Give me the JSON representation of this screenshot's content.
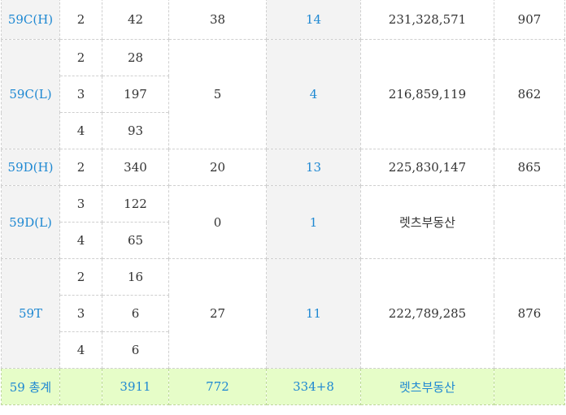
{
  "rows": [
    {
      "type": "59C(H)",
      "subs": [
        {
          "rooms": "2",
          "count": "42"
        }
      ],
      "value_a": "38",
      "value_b": "14",
      "price": "231,328,571",
      "last": "907"
    },
    {
      "type": "59C(L)",
      "subs": [
        {
          "rooms": "2",
          "count": "28"
        },
        {
          "rooms": "3",
          "count": "197"
        },
        {
          "rooms": "4",
          "count": "93"
        }
      ],
      "value_a": "5",
      "value_b": "4",
      "price": "216,859,119",
      "last": "862"
    },
    {
      "type": "59D(H)",
      "subs": [
        {
          "rooms": "2",
          "count": "340"
        }
      ],
      "value_a": "20",
      "value_b": "13",
      "price": "225,830,147",
      "last": "865"
    },
    {
      "type": "59D(L)",
      "subs": [
        {
          "rooms": "3",
          "count": "122"
        },
        {
          "rooms": "4",
          "count": "65"
        }
      ],
      "value_a": "0",
      "value_b": "1",
      "price": "렛츠부동산",
      "last": ""
    },
    {
      "type": "59T",
      "subs": [
        {
          "rooms": "2",
          "count": "16"
        },
        {
          "rooms": "3",
          "count": "6"
        },
        {
          "rooms": "4",
          "count": "6"
        }
      ],
      "value_a": "27",
      "value_b": "11",
      "price": "222,789,285",
      "last": "876"
    }
  ],
  "total": {
    "label": "59 총계",
    "rooms": "",
    "count": "3911",
    "value_a": "772",
    "value_b": "334+8",
    "price": "렛츠부동산",
    "last": ""
  },
  "colors": {
    "accent": "#1e88d2",
    "header_bg": "#f3f3f3",
    "total_bg": "#e6fdc8"
  }
}
